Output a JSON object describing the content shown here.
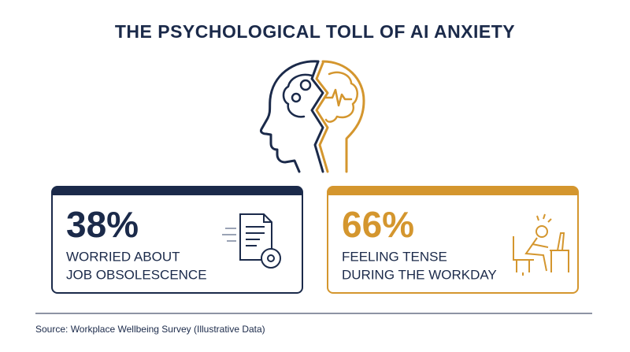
{
  "header": {
    "title": "THE PSYCHOLOGICAL TOLL OF AI ANXIETY"
  },
  "stats": [
    {
      "value": "38%",
      "label": [
        "WORRIED ABOUT",
        "JOB OBSOLESCENCE"
      ]
    },
    {
      "value": "66%",
      "label": [
        "FEELING TENSE",
        "DURING THE WORKDAY"
      ]
    }
  ],
  "footer": {
    "source": "Source: Workplace Wellbeing Survey (Illustrative Data)"
  }
}
